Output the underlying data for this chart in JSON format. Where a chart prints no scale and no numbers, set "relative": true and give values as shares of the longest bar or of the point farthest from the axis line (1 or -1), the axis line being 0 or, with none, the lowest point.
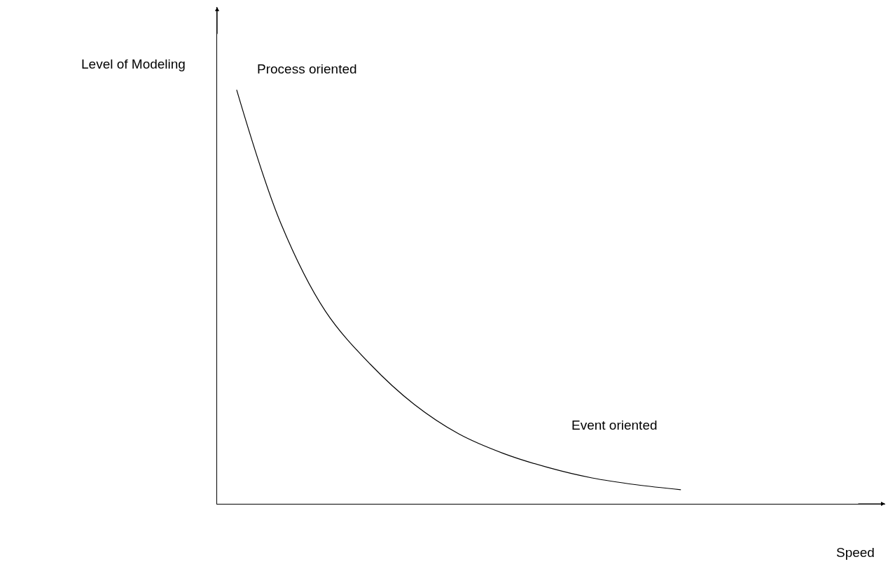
{
  "chart_data": {
    "type": "line",
    "relative": true,
    "ylabel": "Level of Modeling",
    "categories": [
      null,
      null,
      null,
      null,
      null,
      null,
      null,
      null,
      null,
      null,
      null
    ],
    "series": [
      {
        "color": "#000000",
        "values": [
          1.0,
          0.676,
          0.465,
          0.338,
          0.24,
          0.169,
          0.122,
          0.088,
          0.0625,
          0.046,
          0.034
        ]
      }
    ],
    "annotations": [
      "Process oriented",
      "Event oriented",
      "Speed"
    ],
    "marker": "none",
    "line_style": "solid"
  }
}
